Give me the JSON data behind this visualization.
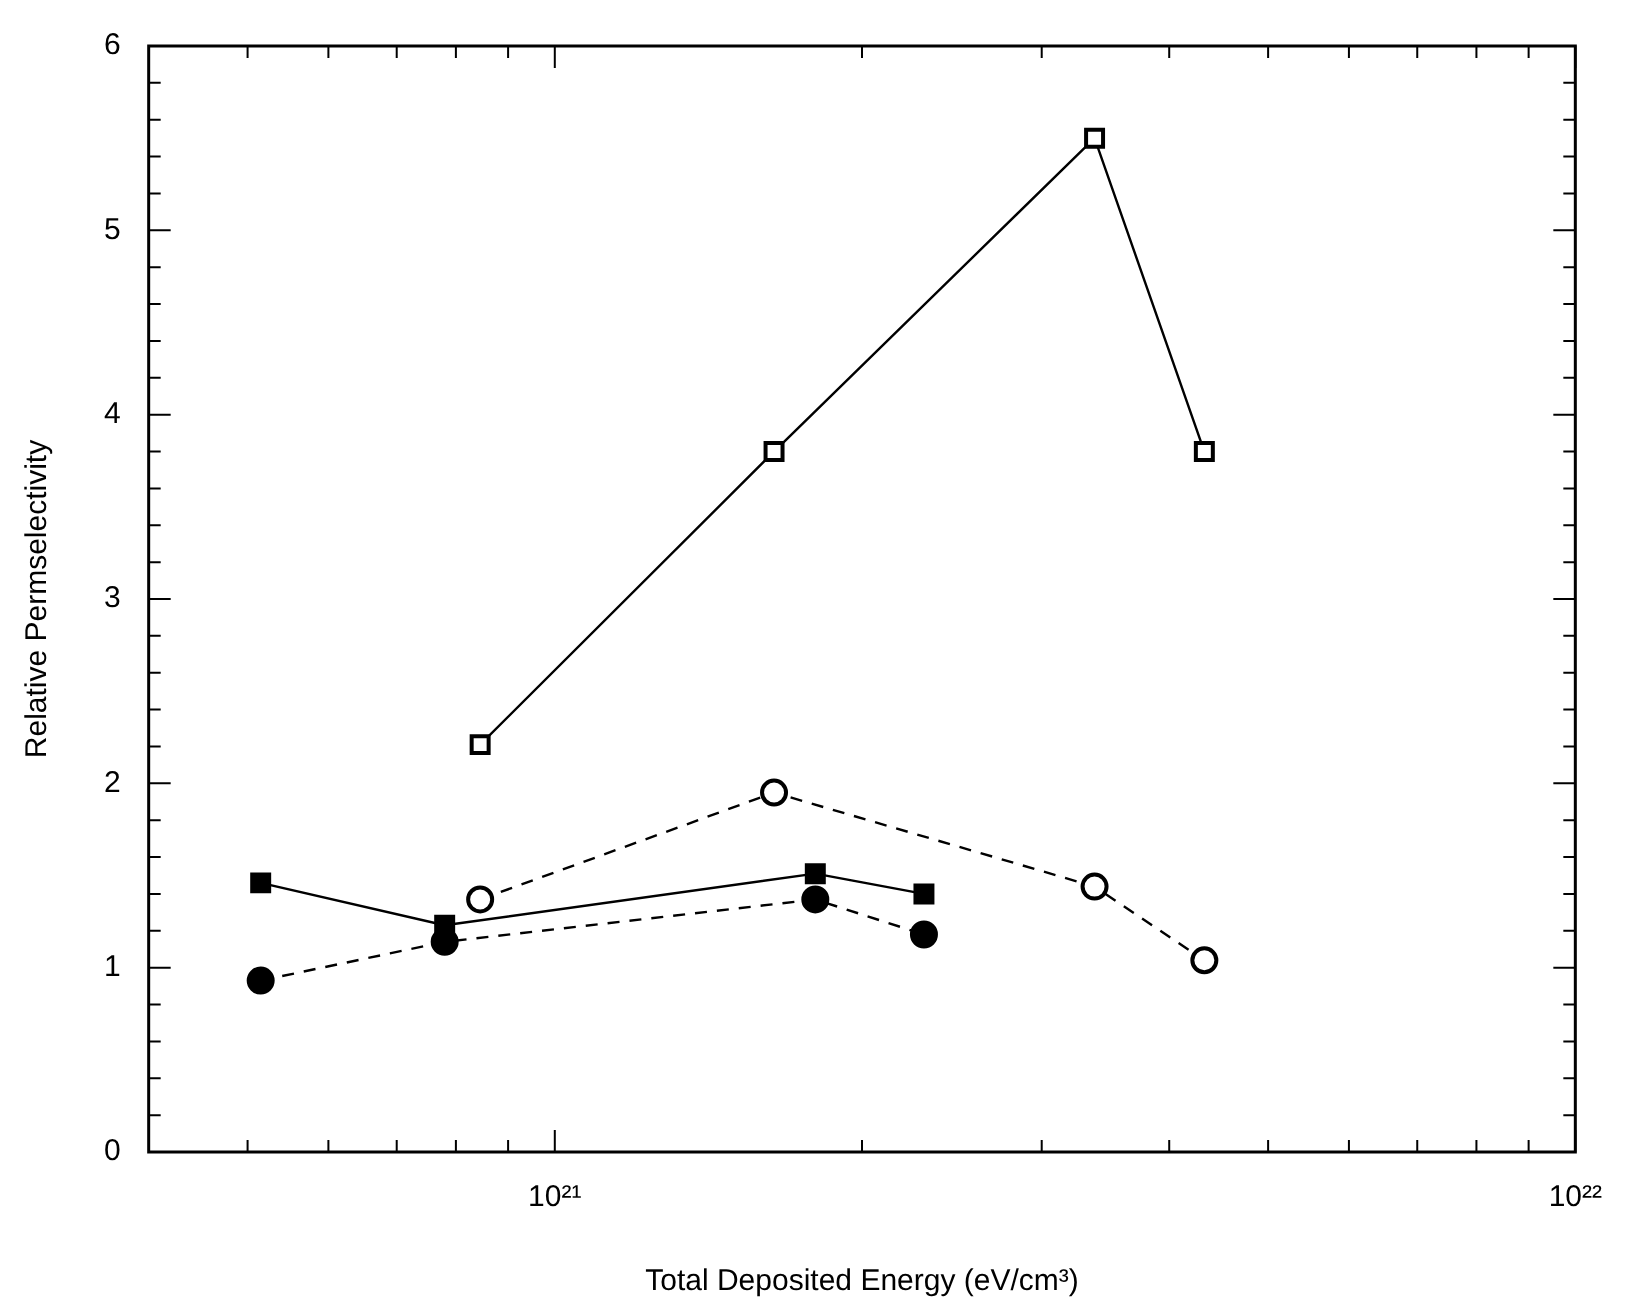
{
  "chart_data": {
    "type": "line",
    "xlabel": "Total Deposited Energy (eV/cm³)",
    "ylabel": "Relative Permselectivity",
    "log": "x",
    "xlim": [
      4e+20,
      1e+22
    ],
    "xticks": [
      {
        "value": 5e+20,
        "label": null
      },
      {
        "value": 6e+20,
        "label": null
      },
      {
        "value": 7e+20,
        "label": null
      },
      {
        "value": 8e+20,
        "label": null
      },
      {
        "value": 9e+20,
        "label": null
      },
      {
        "value": 1e+21,
        "label": "10²¹"
      },
      {
        "value": 2e+21,
        "label": null
      },
      {
        "value": 3e+21,
        "label": null
      },
      {
        "value": 4e+21,
        "label": null
      },
      {
        "value": 5e+21,
        "label": null
      },
      {
        "value": 6e+21,
        "label": null
      },
      {
        "value": 7e+21,
        "label": null
      },
      {
        "value": 8e+21,
        "label": null
      },
      {
        "value": 9e+21,
        "label": null
      },
      {
        "value": 1e+22,
        "label": "10²²"
      }
    ],
    "ylim": [
      0,
      6
    ],
    "yticks": [
      0,
      {
        "value": 0.2,
        "label": null
      },
      {
        "value": 0.4,
        "label": null
      },
      {
        "value": 0.6,
        "label": null
      },
      {
        "value": 0.8,
        "label": null
      },
      1,
      {
        "value": 1.2,
        "label": null
      },
      {
        "value": 1.4,
        "label": null
      },
      {
        "value": 1.6,
        "label": null
      },
      {
        "value": 1.8,
        "label": null
      },
      2,
      {
        "value": 2.2,
        "label": null
      },
      {
        "value": 2.4,
        "label": null
      },
      {
        "value": 2.6,
        "label": null
      },
      {
        "value": 2.8,
        "label": null
      },
      3,
      {
        "value": 3.2,
        "label": null
      },
      {
        "value": 3.4,
        "label": null
      },
      {
        "value": 3.6,
        "label": null
      },
      {
        "value": 3.8,
        "label": null
      },
      4,
      {
        "value": 4.2,
        "label": null
      },
      {
        "value": 4.4,
        "label": null
      },
      {
        "value": 4.6,
        "label": null
      },
      {
        "value": 4.8,
        "label": null
      },
      5,
      {
        "value": 5.2,
        "label": null
      },
      {
        "value": 5.4,
        "label": null
      },
      {
        "value": 5.6,
        "label": null
      },
      {
        "value": 5.8,
        "label": null
      },
      6
    ],
    "grid": false,
    "legend": false,
    "series": [
      {
        "color": "#000000",
        "marker": "square",
        "line_style": "solid",
        "x": [
          8.45e+20,
          1.64e+21,
          3.38e+21,
          4.33e+21
        ],
        "values": [
          2.21,
          3.8,
          5.5,
          3.8
        ]
      },
      {
        "color": "#000000",
        "marker": "circle",
        "line_style": "dashed",
        "x": [
          8.45e+20,
          1.64e+21,
          3.38e+21,
          4.33e+21
        ],
        "values": [
          1.37,
          1.95,
          1.44,
          1.04
        ]
      },
      {
        "color": "#000000",
        "marker": "square",
        "line_style": "solid",
        "x": [
          5.15e+20,
          7.8e+20,
          1.8e+21,
          2.3e+21
        ],
        "values": [
          1.46,
          1.23,
          1.51,
          1.4
        ]
      },
      {
        "color": "#000000",
        "marker": "circle",
        "line_style": "dashed",
        "x": [
          5.15e+20,
          7.8e+20,
          1.8e+21,
          2.3e+21
        ],
        "values": [
          0.93,
          1.14,
          1.37,
          1.18
        ]
      }
    ]
  }
}
